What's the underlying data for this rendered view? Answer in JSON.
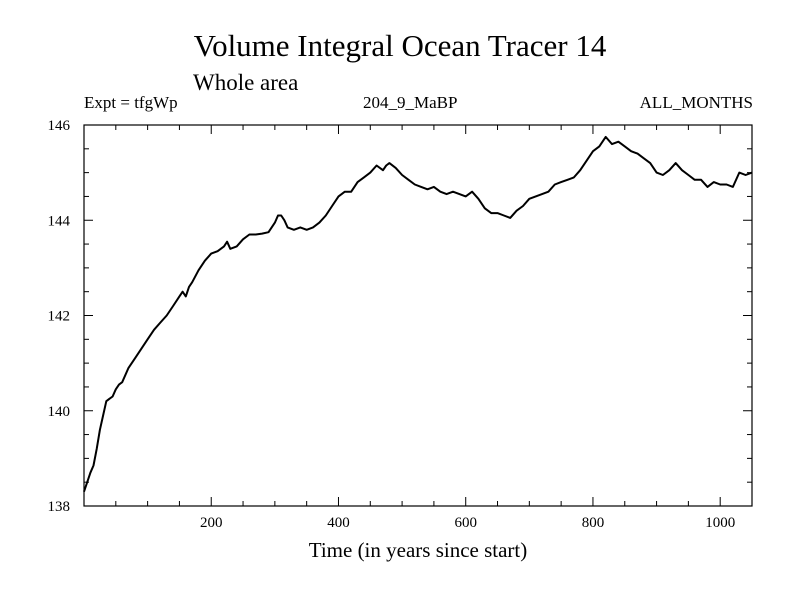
{
  "header": {
    "title": "Volume Integral Ocean Tracer 14",
    "subtitle": "Whole area",
    "left_label": "Expt = tfgWp",
    "center_label": "204_9_MaBP",
    "right_label": "ALL_MONTHS"
  },
  "chart_data": {
    "type": "line",
    "title": "Volume Integral Ocean Tracer 14",
    "subtitle": "Whole area",
    "xlabel": "Time (in years since start)",
    "ylabel": "",
    "xlim": [
      0,
      1050
    ],
    "ylim": [
      138,
      146
    ],
    "xticks": [
      200,
      400,
      600,
      800,
      1000
    ],
    "yticks": [
      138,
      140,
      142,
      144,
      146
    ],
    "x_minor_step": 50,
    "y_minor_step": 0.5,
    "grid": false,
    "line_color": "#000000",
    "series": [
      {
        "name": "Volume Integral Ocean Tracer 14",
        "x": [
          0,
          5,
          10,
          15,
          20,
          25,
          30,
          35,
          40,
          45,
          50,
          55,
          60,
          70,
          80,
          90,
          100,
          110,
          120,
          130,
          140,
          150,
          155,
          160,
          165,
          170,
          180,
          190,
          200,
          210,
          220,
          225,
          230,
          240,
          250,
          260,
          270,
          280,
          290,
          300,
          305,
          310,
          315,
          320,
          330,
          340,
          350,
          360,
          370,
          380,
          390,
          400,
          410,
          420,
          430,
          440,
          450,
          460,
          470,
          475,
          480,
          490,
          500,
          510,
          520,
          530,
          540,
          550,
          560,
          570,
          580,
          590,
          600,
          610,
          620,
          630,
          640,
          650,
          660,
          670,
          680,
          690,
          700,
          710,
          720,
          730,
          740,
          750,
          760,
          770,
          780,
          790,
          800,
          810,
          815,
          820,
          830,
          840,
          850,
          860,
          870,
          880,
          890,
          900,
          910,
          920,
          930,
          940,
          950,
          960,
          970,
          980,
          990,
          1000,
          1010,
          1020,
          1030,
          1040,
          1050
        ],
        "values": [
          138.3,
          138.5,
          138.7,
          138.85,
          139.2,
          139.6,
          139.9,
          140.2,
          140.25,
          140.3,
          140.45,
          140.55,
          140.6,
          140.9,
          141.1,
          141.3,
          141.5,
          141.7,
          141.85,
          142.0,
          142.2,
          142.4,
          142.5,
          142.4,
          142.6,
          142.7,
          142.95,
          143.15,
          143.3,
          143.35,
          143.45,
          143.55,
          143.4,
          143.45,
          143.6,
          143.7,
          143.7,
          143.72,
          143.75,
          143.95,
          144.1,
          144.1,
          144.0,
          143.85,
          143.8,
          143.85,
          143.8,
          143.85,
          143.95,
          144.1,
          144.3,
          144.5,
          144.6,
          144.6,
          144.8,
          144.9,
          145.0,
          145.15,
          145.05,
          145.15,
          145.2,
          145.1,
          144.95,
          144.85,
          144.75,
          144.7,
          144.65,
          144.7,
          144.6,
          144.55,
          144.6,
          144.55,
          144.5,
          144.6,
          144.45,
          144.25,
          144.15,
          144.15,
          144.1,
          144.05,
          144.2,
          144.3,
          144.45,
          144.5,
          144.55,
          144.6,
          144.75,
          144.8,
          144.85,
          144.9,
          145.05,
          145.25,
          145.45,
          145.55,
          145.65,
          145.75,
          145.6,
          145.65,
          145.55,
          145.45,
          145.4,
          145.3,
          145.2,
          145.0,
          144.95,
          145.05,
          145.2,
          145.05,
          144.95,
          144.85,
          144.85,
          144.7,
          144.8,
          144.75,
          144.75,
          144.7,
          145.0,
          144.95,
          145.0
        ]
      }
    ]
  }
}
